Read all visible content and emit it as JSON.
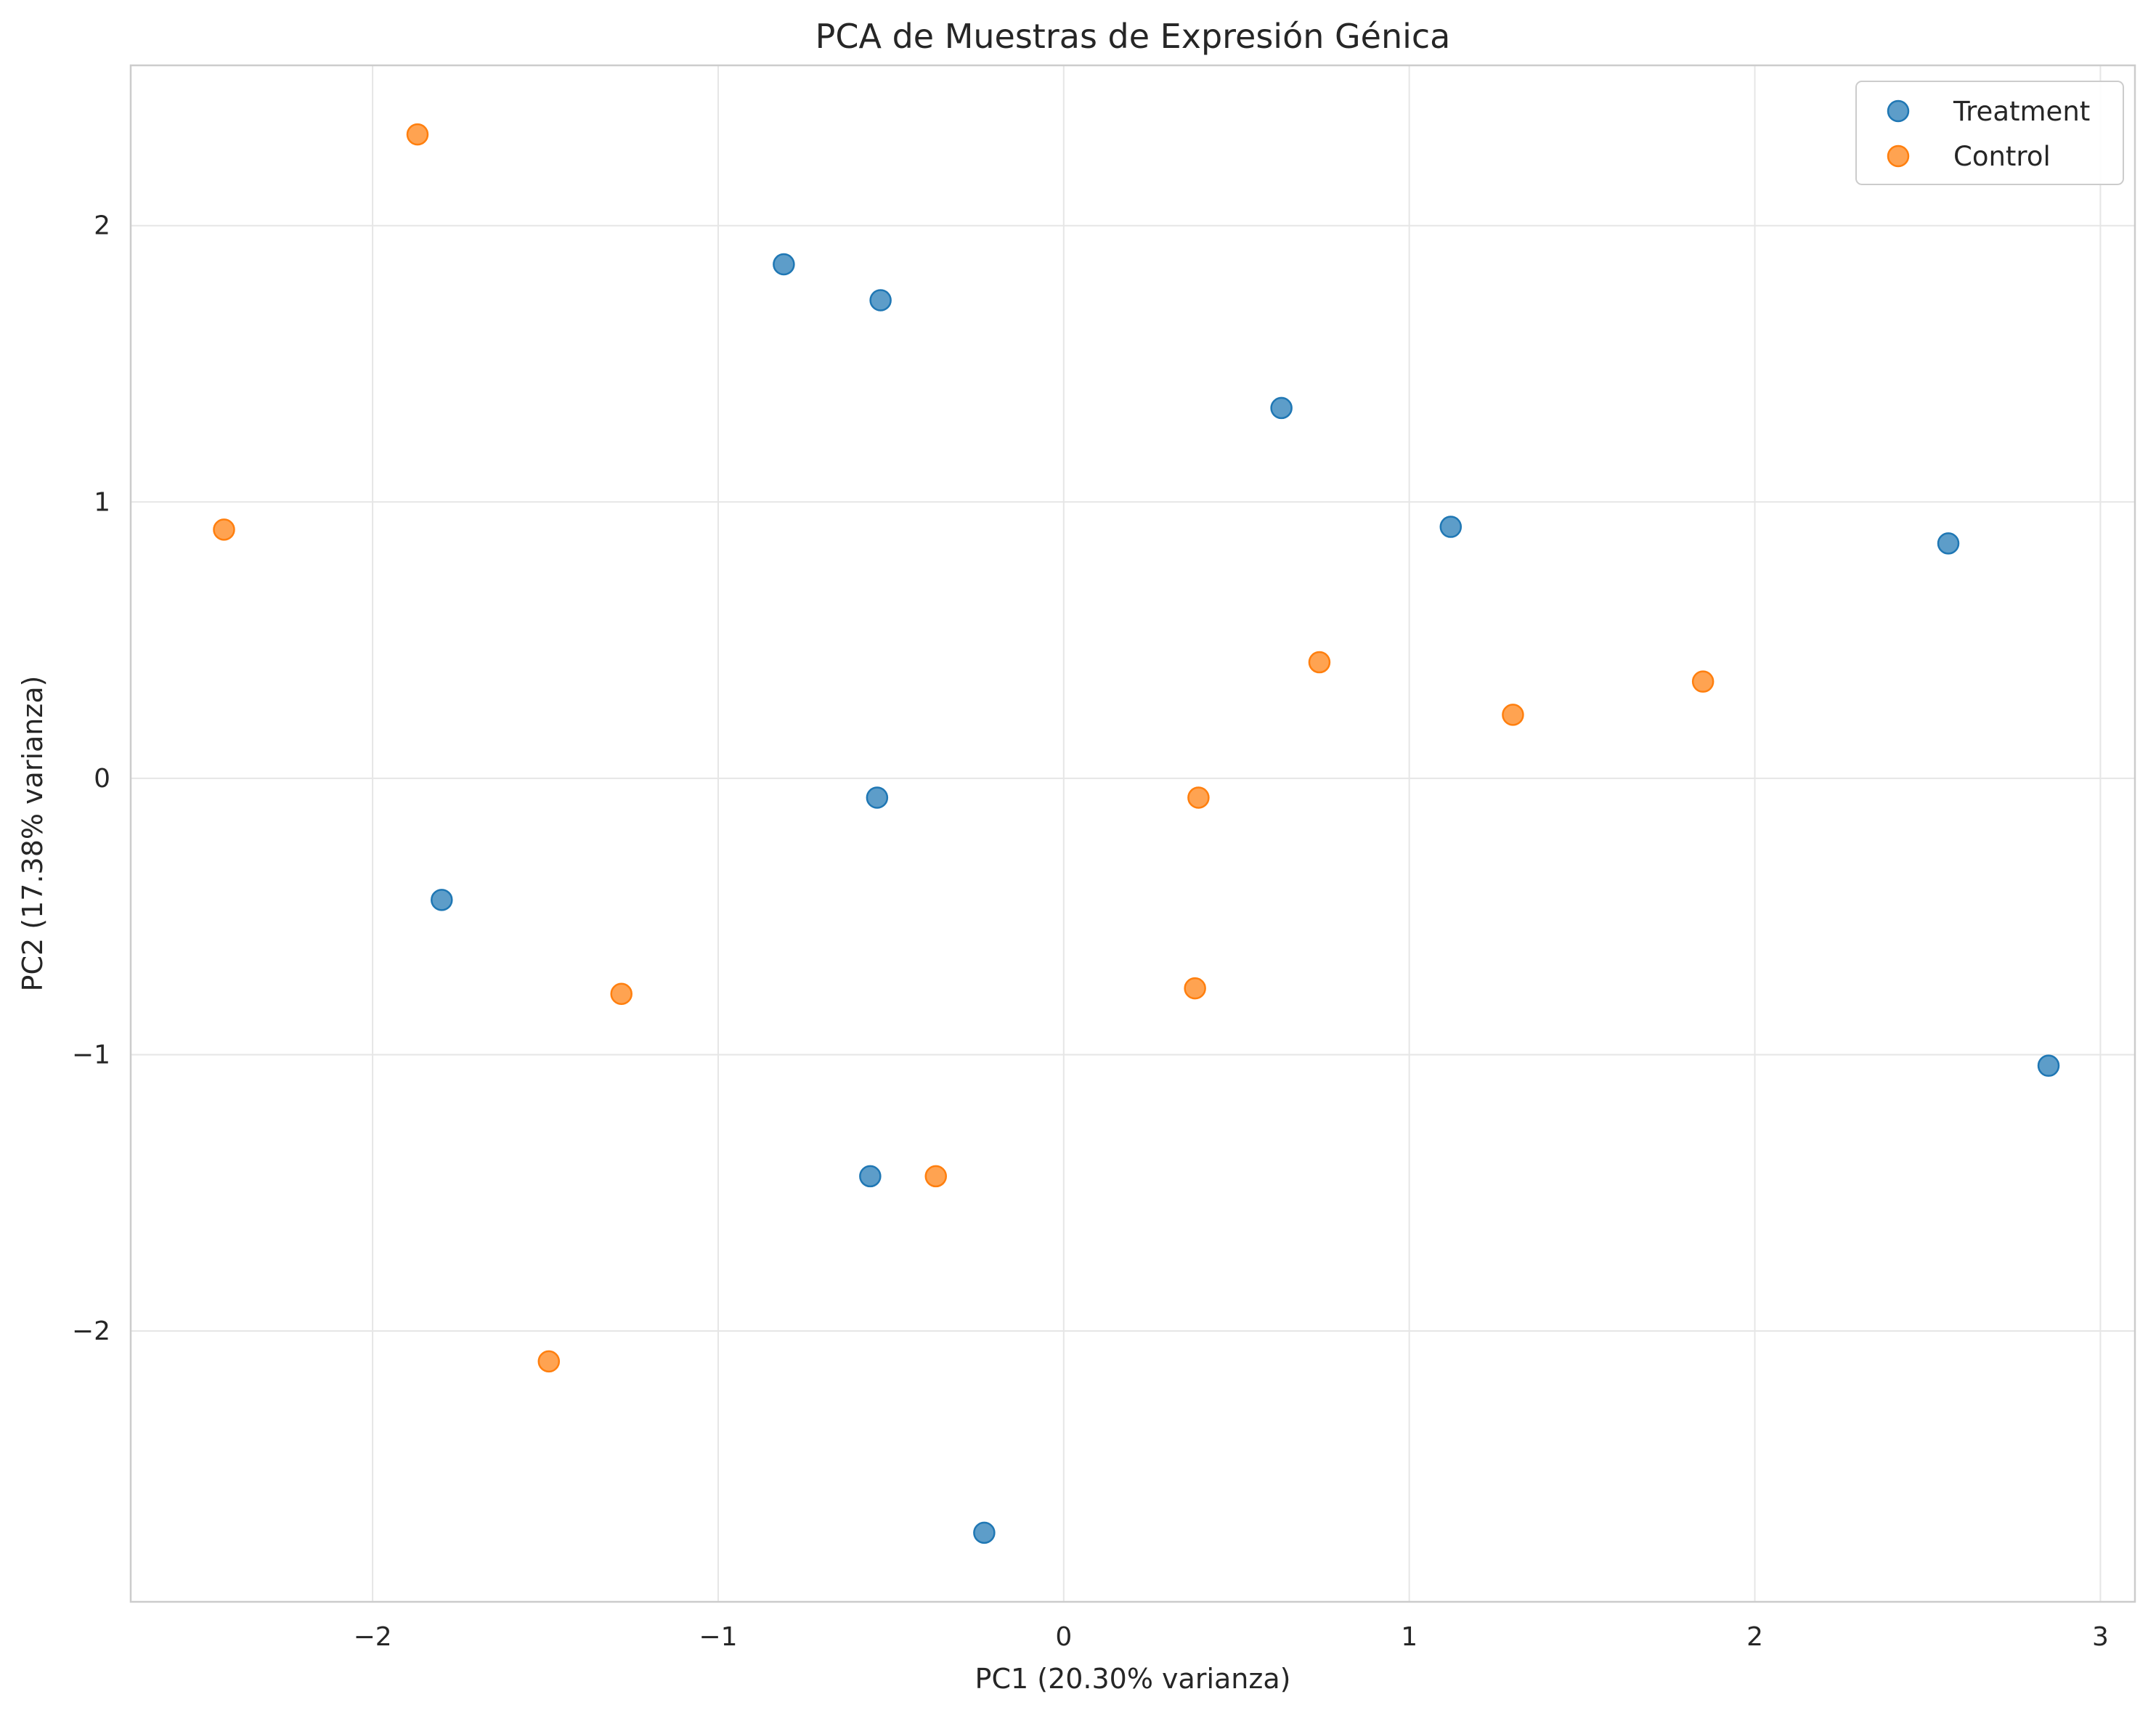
{
  "chart_data": {
    "type": "scatter",
    "title": "PCA de Muestras de Expresión Génica",
    "xlabel": "PC1 (20.30% varianza)",
    "ylabel": "PC2 (17.38% varianza)",
    "xlim": [
      -2.7,
      3.1
    ],
    "ylim": [
      -2.98,
      2.58
    ],
    "xticks": [
      -2,
      -1,
      0,
      1,
      2,
      3
    ],
    "yticks": [
      -2,
      -1,
      0,
      1,
      2
    ],
    "xtick_labels": [
      "−2",
      "−1",
      "0",
      "1",
      "2",
      "3"
    ],
    "ytick_labels": [
      "−2",
      "−1",
      "0",
      "1",
      "2"
    ],
    "grid": true,
    "legend_position": "top-right",
    "series": [
      {
        "name": "Treatment",
        "color": "#1f77b4",
        "points": [
          [
            -0.81,
            1.86
          ],
          [
            -0.53,
            1.73
          ],
          [
            0.63,
            1.34
          ],
          [
            1.12,
            0.91
          ],
          [
            2.56,
            0.85
          ],
          [
            -0.54,
            -0.07
          ],
          [
            -1.8,
            -0.44
          ],
          [
            -0.56,
            -1.44
          ],
          [
            2.85,
            -1.04
          ],
          [
            -0.23,
            -2.73
          ]
        ]
      },
      {
        "name": "Control",
        "color": "#ff7f0e",
        "points": [
          [
            -1.87,
            2.33
          ],
          [
            -2.43,
            0.9
          ],
          [
            0.74,
            0.42
          ],
          [
            1.3,
            0.23
          ],
          [
            1.85,
            0.35
          ],
          [
            0.39,
            -0.07
          ],
          [
            -1.28,
            -0.78
          ],
          [
            0.38,
            -0.76
          ],
          [
            -0.37,
            -1.44
          ],
          [
            -1.49,
            -2.11
          ]
        ]
      }
    ]
  }
}
